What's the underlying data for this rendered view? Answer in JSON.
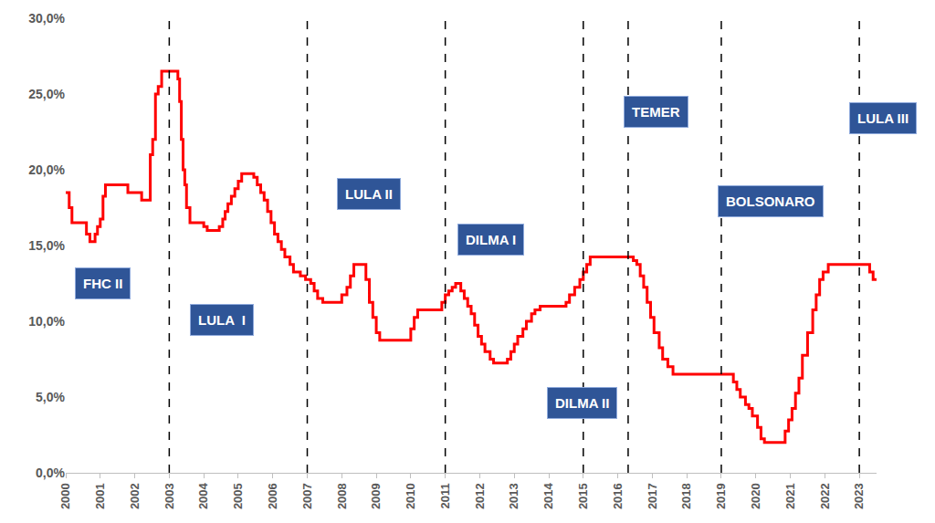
{
  "chart_data": {
    "type": "line",
    "line_style": "step",
    "color": "#ff0000",
    "grid": false,
    "x": [
      2000.0,
      2000.1,
      2000.18,
      2000.6,
      2000.7,
      2000.85,
      2000.92,
      2001.0,
      2001.08,
      2001.15,
      2001.8,
      2002.2,
      2002.45,
      2002.52,
      2002.6,
      2002.68,
      2002.78,
      2003.25,
      2003.3,
      2003.35,
      2003.4,
      2003.45,
      2003.5,
      2003.6,
      2004.0,
      2004.1,
      2004.45,
      2004.55,
      2004.62,
      2004.7,
      2004.8,
      2004.9,
      2005.0,
      2005.1,
      2005.45,
      2005.55,
      2005.65,
      2005.75,
      2005.85,
      2005.95,
      2006.05,
      2006.15,
      2006.25,
      2006.35,
      2006.5,
      2006.6,
      2006.8,
      2006.95,
      2007.1,
      2007.2,
      2007.3,
      2007.45,
      2008.0,
      2008.15,
      2008.25,
      2008.35,
      2008.7,
      2008.8,
      2008.9,
      2009.0,
      2009.1,
      2010.0,
      2010.1,
      2010.2,
      2010.9,
      2011.0,
      2011.1,
      2011.2,
      2011.3,
      2011.45,
      2011.55,
      2011.65,
      2011.75,
      2011.85,
      2011.95,
      2012.05,
      2012.15,
      2012.3,
      2012.4,
      2012.8,
      2012.9,
      2013.0,
      2013.1,
      2013.25,
      2013.35,
      2013.5,
      2013.6,
      2013.75,
      2014.5,
      2014.6,
      2014.75,
      2014.9,
      2015.0,
      2015.1,
      2015.2,
      2016.45,
      2016.55,
      2016.65,
      2016.75,
      2016.85,
      2016.95,
      2017.05,
      2017.2,
      2017.3,
      2017.45,
      2017.6,
      2019.35,
      2019.45,
      2019.55,
      2019.7,
      2019.8,
      2019.9,
      2020.05,
      2020.15,
      2020.25,
      2020.85,
      2020.95,
      2021.05,
      2021.15,
      2021.25,
      2021.35,
      2021.5,
      2021.65,
      2021.75,
      2021.85,
      2021.95,
      2022.1,
      2023.3,
      2023.4,
      2023.5
    ],
    "values": [
      18.5,
      17.5,
      16.5,
      15.75,
      15.25,
      15.75,
      16.25,
      16.75,
      18.25,
      19.0,
      18.5,
      18.0,
      21.0,
      22.0,
      25.0,
      25.5,
      26.5,
      26.0,
      24.5,
      22.0,
      20.0,
      19.0,
      17.5,
      16.5,
      16.25,
      16.0,
      16.25,
      16.75,
      17.25,
      17.75,
      18.25,
      18.75,
      19.25,
      19.75,
      19.5,
      19.0,
      18.5,
      18.0,
      17.25,
      16.5,
      15.75,
      15.25,
      14.75,
      14.25,
      13.75,
      13.25,
      13.0,
      12.75,
      12.5,
      12.0,
      11.5,
      11.25,
      11.75,
      12.25,
      13.0,
      13.75,
      12.75,
      11.25,
      10.25,
      9.25,
      8.75,
      9.5,
      10.25,
      10.75,
      11.25,
      11.75,
      12.0,
      12.25,
      12.5,
      12.0,
      11.5,
      11.0,
      10.5,
      9.75,
      9.0,
      8.5,
      8.0,
      7.5,
      7.25,
      7.5,
      8.0,
      8.5,
      9.0,
      9.5,
      10.0,
      10.5,
      10.75,
      11.0,
      11.25,
      11.75,
      12.25,
      12.75,
      13.25,
      13.75,
      14.25,
      14.0,
      13.75,
      13.0,
      12.25,
      11.25,
      10.25,
      9.25,
      8.25,
      7.5,
      7.0,
      6.5,
      6.0,
      5.5,
      5.0,
      4.5,
      4.25,
      3.75,
      3.0,
      2.25,
      2.0,
      2.75,
      3.5,
      4.25,
      5.25,
      6.25,
      7.75,
      9.25,
      10.75,
      11.75,
      12.75,
      13.25,
      13.75,
      13.25,
      12.75,
      12.75
    ],
    "xlim": [
      2000,
      2023.5
    ],
    "xticks": [
      2000,
      2001,
      2002,
      2003,
      2004,
      2005,
      2006,
      2007,
      2008,
      2009,
      2010,
      2011,
      2012,
      2013,
      2014,
      2015,
      2016,
      2017,
      2018,
      2019,
      2020,
      2021,
      2022,
      2023
    ],
    "ylim": [
      0,
      30
    ],
    "yticks": [
      {
        "value": 0,
        "label": "0,0%"
      },
      {
        "value": 5,
        "label": "5,0%"
      },
      {
        "value": 10,
        "label": "10,0%"
      },
      {
        "value": 15,
        "label": "15,0%"
      },
      {
        "value": 20,
        "label": "20,0%"
      },
      {
        "value": 25,
        "label": "25,0%"
      },
      {
        "value": 30,
        "label": "30,0%"
      }
    ],
    "vlines": [
      2003,
      2007,
      2011,
      2015,
      2016.3,
      2019,
      2023
    ],
    "annotations": [
      {
        "text": "FHC II",
        "x": 2000.26,
        "y": 12.5
      },
      {
        "text": "LULA  I",
        "x": 2003.6,
        "y": 10.1
      },
      {
        "text": "LULA II",
        "x": 2007.87,
        "y": 18.4
      },
      {
        "text": "DILMA I",
        "x": 2011.34,
        "y": 15.4
      },
      {
        "text": "DILMA II",
        "x": 2013.94,
        "y": 4.6
      },
      {
        "text": "TEMER",
        "x": 2016.16,
        "y": 23.8
      },
      {
        "text": "BOLSONARO",
        "x": 2018.89,
        "y": 17.9
      },
      {
        "text": "LULA III",
        "x": 2022.71,
        "y": 23.4
      }
    ]
  }
}
